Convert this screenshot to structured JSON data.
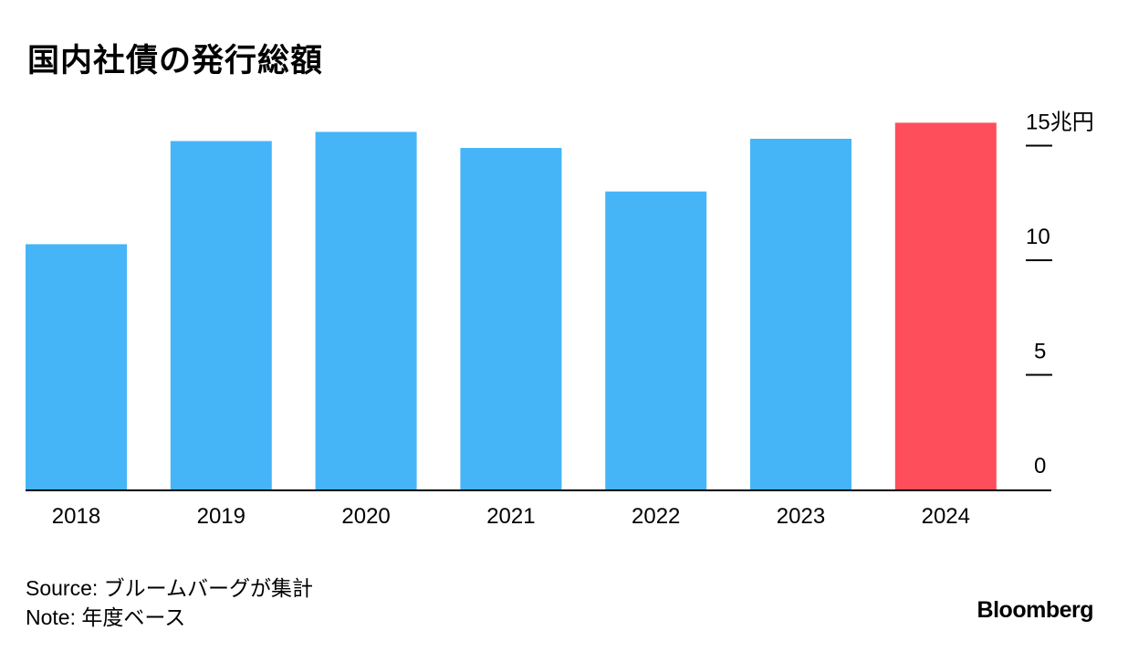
{
  "title": "国内社債の発行総額",
  "chart_data": {
    "type": "bar",
    "categories": [
      "2018",
      "2019",
      "2020",
      "2021",
      "2022",
      "2023",
      "2024"
    ],
    "values": [
      10.7,
      15.2,
      15.6,
      14.9,
      13.0,
      15.3,
      16.0
    ],
    "colors": [
      "#45b5f8",
      "#45b5f8",
      "#45b5f8",
      "#45b5f8",
      "#45b5f8",
      "#45b5f8",
      "#ff4e5b"
    ],
    "yticks": [
      0,
      5,
      10,
      15
    ],
    "ytick_labels": [
      "0",
      "5",
      "10",
      "15兆円"
    ],
    "ylim": [
      0,
      16
    ],
    "axis_position": "right",
    "grid": false
  },
  "footer": {
    "source": "Source: ブルームバーグが集計",
    "note": "Note: 年度ベース"
  },
  "brand": "Bloomberg"
}
